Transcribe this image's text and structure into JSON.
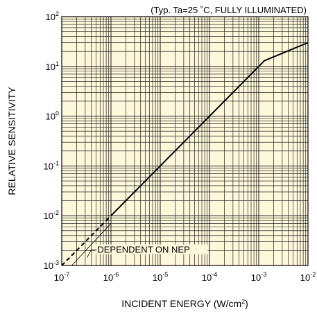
{
  "chart_data": {
    "type": "line",
    "title": "(Typ. Ta=25 ˚C, FULLY ILLUMINATED)",
    "xlabel_main": "INCIDENT ENERGY (W/cm",
    "xlabel_sup": "2",
    "xlabel_close": ")",
    "ylabel": "RELATIVE SENSITIVITY",
    "x_scale": "log",
    "y_scale": "log",
    "xlim": [
      1e-07,
      0.01
    ],
    "ylim": [
      0.001,
      100.0
    ],
    "grid": true,
    "background_color": "#fdf8dc",
    "x_ticks": [
      {
        "base": "10",
        "exp": "-7",
        "value": 1e-07
      },
      {
        "base": "10",
        "exp": "-6",
        "value": 1e-06
      },
      {
        "base": "10",
        "exp": "-5",
        "value": 1e-05
      },
      {
        "base": "10",
        "exp": "-4",
        "value": 0.0001
      },
      {
        "base": "10",
        "exp": "-3",
        "value": 0.001
      },
      {
        "base": "10",
        "exp": "-2",
        "value": 0.01
      }
    ],
    "y_ticks": [
      {
        "base": "10",
        "exp": "-3",
        "value": 0.001
      },
      {
        "base": "10",
        "exp": "-2",
        "value": 0.01
      },
      {
        "base": "10",
        "exp": "-1",
        "value": 0.1
      },
      {
        "base": "10",
        "exp": "0",
        "value": 1
      },
      {
        "base": "10",
        "exp": "1",
        "value": 10
      },
      {
        "base": "10",
        "exp": "2",
        "value": 100
      }
    ],
    "series": [
      {
        "style": "solid",
        "x": [
          1e-06,
          0.001,
          0.0013,
          0.01
        ],
        "y": [
          0.01,
          10,
          13,
          30
        ]
      },
      {
        "style": "dashed",
        "x": [
          1e-07,
          1e-06
        ],
        "y": [
          0.001,
          0.01
        ]
      },
      {
        "style": "thin",
        "x": [
          1.6e-07,
          1e-06
        ],
        "y": [
          0.001,
          0.007
        ]
      }
    ],
    "annotation": {
      "text": "DEPENDENT ON NEP",
      "x": 4.5e-07,
      "y": 0.0018
    }
  }
}
